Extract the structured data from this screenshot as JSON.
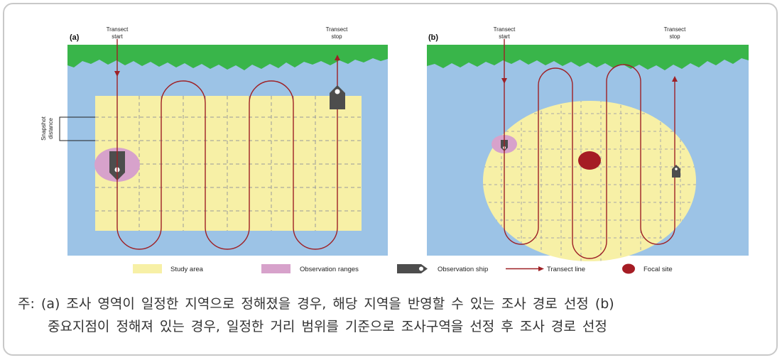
{
  "panel_a": {
    "label": "(a)",
    "transect_start": [
      "Transect",
      "start"
    ],
    "transect_stop": [
      "Transect",
      "stop"
    ],
    "snapshot_distance": [
      "Snapshot",
      "distance"
    ]
  },
  "panel_b": {
    "label": "(b)",
    "transect_start": [
      "Transect",
      "start"
    ],
    "transect_stop": [
      "Transect",
      "stop"
    ]
  },
  "legend": {
    "study_area": "Study area",
    "observation_ranges": "Observation ranges",
    "observation_ship": "Observation ship",
    "transect_line": "Transect line",
    "focal_site": "Focal site"
  },
  "colors": {
    "water": "#9cc3e6",
    "land": "#39b54a",
    "study_area": "#f7f0a6",
    "observation_range": "#d7a2cb",
    "ship": "#4d4d4d",
    "transect": "#9e2025",
    "focal_site": "#a51c24"
  },
  "caption": {
    "line1": "주: (a) 조사 영역이 일정한 지역으로 정해졌을 경우, 해당 지역을 반영할 수 있는 조사 경로 선정 (b)",
    "line2": "중요지점이 정해져 있는 경우, 일정한 거리 범위를 기준으로 조사구역을 선정 후 조사 경로 선정"
  }
}
